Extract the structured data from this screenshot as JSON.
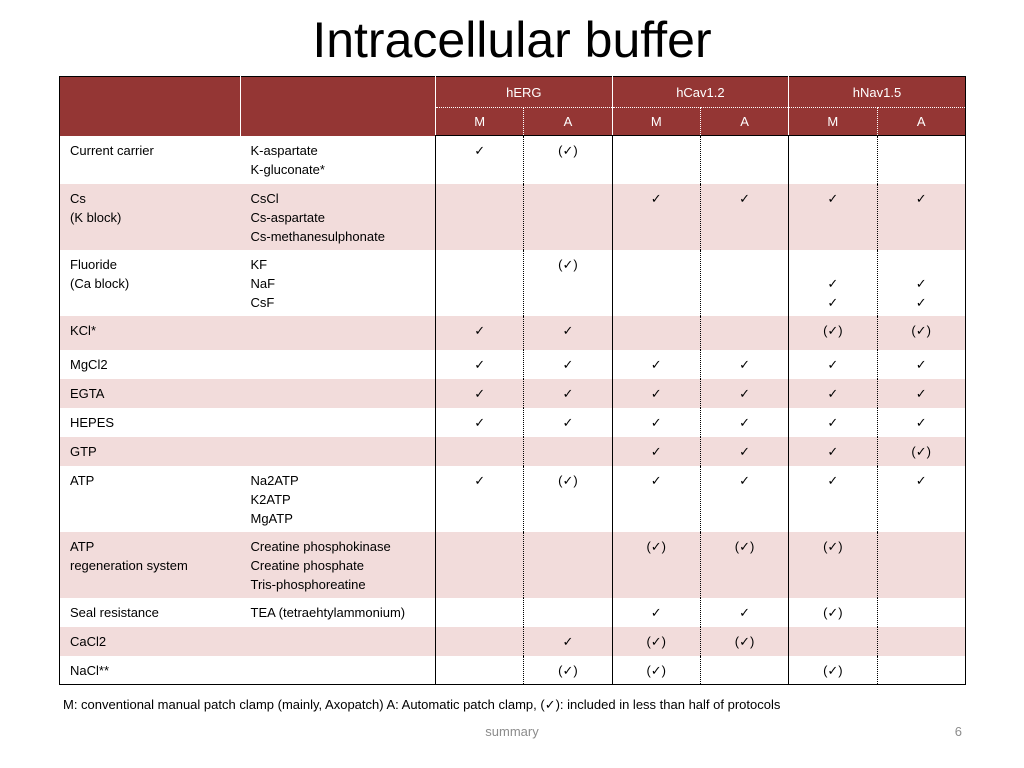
{
  "slide": {
    "title": "Intracellular buffer",
    "footnote": "M: conventional manual patch clamp (mainly, Axopatch)  A:  Automatic patch clamp, (✓): included in less than half of protocols",
    "footer_center": "summary",
    "page_number": "6"
  },
  "table": {
    "channels": [
      "hERG",
      "hCav1.2",
      "hNav1.5"
    ],
    "subheaders": [
      "M",
      "A",
      "M",
      "A",
      "M",
      "A"
    ],
    "rows": [
      {
        "name": "Current carrier",
        "components": "K-aspartate\nK-gluconate*",
        "marks": [
          "✓",
          "(✓)",
          "",
          "",
          "",
          ""
        ]
      },
      {
        "name": "Cs\n(K block)",
        "components": "CsCl\nCs-aspartate\nCs-methanesulphonate",
        "marks": [
          "",
          "",
          "✓",
          "✓",
          "✓",
          "✓"
        ]
      },
      {
        "name": "Fluoride\n(Ca block)",
        "components": "KF\nNaF\nCsF",
        "marks": [
          "",
          "(✓)",
          "",
          "",
          "\n✓\n✓",
          "\n✓\n✓"
        ]
      },
      {
        "name": "KCl*",
        "components": "",
        "marks": [
          "✓",
          "✓",
          "",
          "",
          "(✓)",
          "(✓)"
        ]
      },
      {
        "name": "MgCl2",
        "components": "",
        "marks": [
          "✓",
          "✓",
          "✓",
          "✓",
          "✓",
          "✓"
        ]
      },
      {
        "name": "EGTA",
        "components": "",
        "marks": [
          "✓",
          "✓",
          "✓",
          "✓",
          "✓",
          "✓"
        ]
      },
      {
        "name": "HEPES",
        "components": "",
        "marks": [
          "✓",
          "✓",
          "✓",
          "✓",
          "✓",
          "✓"
        ]
      },
      {
        "name": "GTP",
        "components": "",
        "marks": [
          "",
          "",
          "✓",
          "✓",
          "✓",
          "(✓)"
        ]
      },
      {
        "name": "ATP",
        "components": "Na2ATP\nK2ATP\nMgATP",
        "marks": [
          "✓",
          "(✓)",
          "✓",
          "✓",
          "✓",
          "✓"
        ]
      },
      {
        "name": "ATP\nregeneration system",
        "components": "Creatine phosphokinase\nCreatine phosphate\nTris-phosphoreatine",
        "marks": [
          "",
          "",
          "(✓)",
          "(✓)",
          "(✓)",
          ""
        ]
      },
      {
        "name": "Seal resistance",
        "components": "TEA (tetraehtylammonium)",
        "marks": [
          "",
          "",
          "✓",
          "✓",
          "(✓)",
          ""
        ]
      },
      {
        "name": "CaCl2",
        "components": "",
        "marks": [
          "",
          "✓",
          "(✓)",
          "(✓)",
          "",
          ""
        ]
      },
      {
        "name": "NaCl**",
        "components": "",
        "marks": [
          "",
          "(✓)",
          "(✓)",
          "",
          "(✓)",
          ""
        ]
      }
    ]
  },
  "colors": {
    "header_bg": "#943634",
    "band_bg": "#f2dcdb",
    "footer_text": "#8c8c8c"
  }
}
